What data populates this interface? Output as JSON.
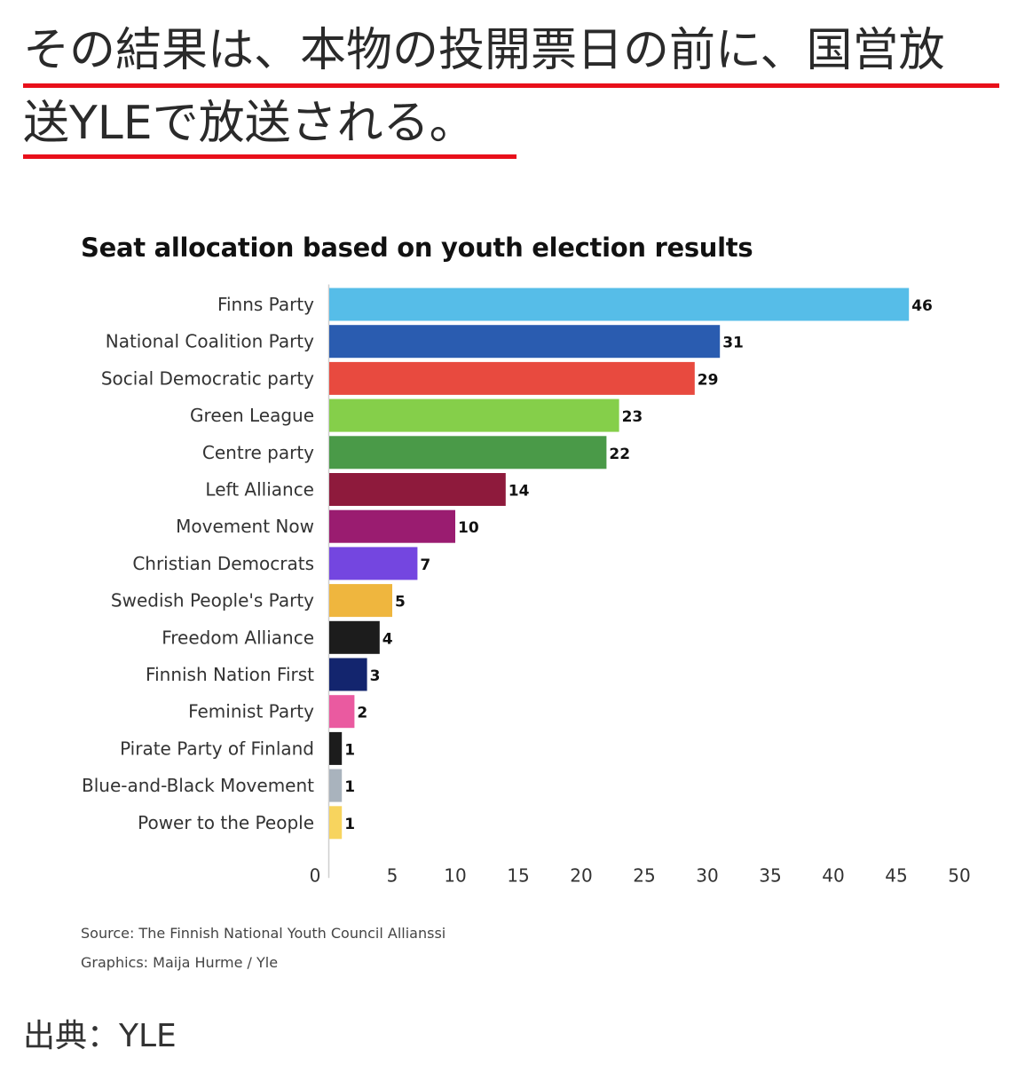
{
  "headline": {
    "line1": "その結果は、本物の投開票日の前に、国営放",
    "line2": "送YLEで放送される。"
  },
  "chart_data": {
    "type": "bar",
    "orientation": "horizontal",
    "title": "Seat allocation based on youth election results",
    "categories": [
      "Finns Party",
      "National Coalition Party",
      "Social Democratic party",
      "Green League",
      "Centre party",
      "Left Alliance",
      "Movement Now",
      "Christian Democrats",
      "Swedish People's Party",
      "Freedom Alliance",
      "Finnish Nation First",
      "Feminist Party",
      "Pirate Party of Finland",
      "Blue-and-Black Movement",
      "Power to the People"
    ],
    "values": [
      46,
      31,
      29,
      23,
      22,
      14,
      10,
      7,
      5,
      4,
      3,
      2,
      1,
      1,
      1
    ],
    "colors": [
      "#56bde8",
      "#2a5cb0",
      "#e84a3f",
      "#85cf4a",
      "#4a9a48",
      "#8e1a3c",
      "#9a1c70",
      "#7446e0",
      "#efb63e",
      "#1c1c1c",
      "#13256e",
      "#ea5aa0",
      "#1c1c1c",
      "#a9b3bd",
      "#f7d45e"
    ],
    "xlim": [
      0,
      50
    ],
    "xticks": [
      0,
      5,
      10,
      15,
      20,
      25,
      30,
      35,
      40,
      45,
      50
    ],
    "grid": false,
    "legend": "none"
  },
  "credits": {
    "source": "Source: The Finnish National Youth Council Allianssi",
    "graphics": "Graphics: Maija Hurme / Yle"
  },
  "photo_source": "出典：YLE"
}
